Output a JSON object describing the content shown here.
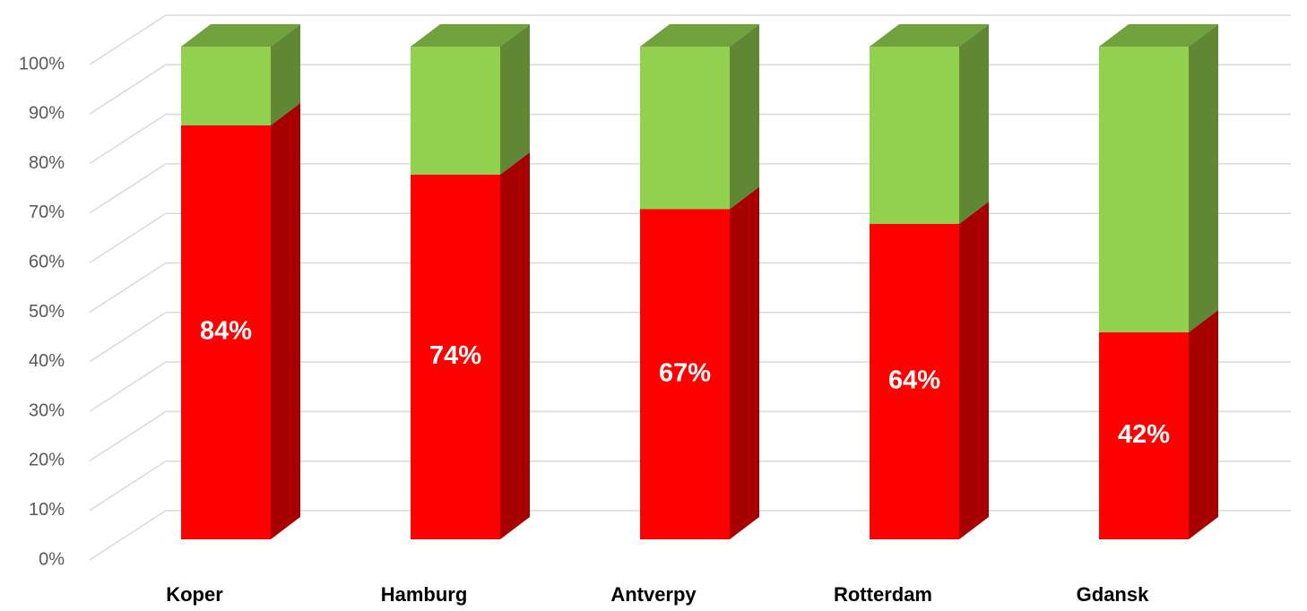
{
  "chart_data": {
    "type": "bar",
    "stacked": true,
    "categories": [
      "Koper",
      "Hamburg",
      "Antverpy",
      "Rotterdam",
      "Gdansk"
    ],
    "series": [
      {
        "color": "#ff0000",
        "values": [
          84,
          74,
          67,
          64,
          42
        ],
        "value_labels": [
          "84%",
          "74%",
          "67%",
          "64%",
          "42%"
        ]
      },
      {
        "color": "#92d050",
        "values": [
          16,
          26,
          33,
          36,
          58
        ]
      }
    ],
    "ylim": [
      0,
      100
    ],
    "yticks": [
      {
        "value": 0,
        "label": "0%"
      },
      {
        "value": 10,
        "label": "10%"
      },
      {
        "value": 20,
        "label": "20%"
      },
      {
        "value": 30,
        "label": "30%"
      },
      {
        "value": 40,
        "label": "40%"
      },
      {
        "value": 50,
        "label": "50%"
      },
      {
        "value": 60,
        "label": "60%"
      },
      {
        "value": 70,
        "label": "70%"
      },
      {
        "value": 80,
        "label": "80%"
      },
      {
        "value": 90,
        "label": "90%"
      },
      {
        "value": 100,
        "label": "100%"
      }
    ],
    "grid": true
  }
}
